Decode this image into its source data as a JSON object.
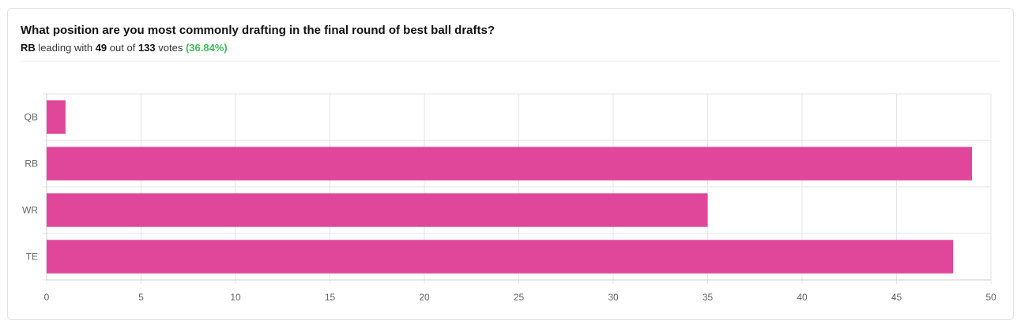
{
  "poll": {
    "question": "What position are you most commonly drafting in the final round of best ball drafts?",
    "leader": "RB",
    "leading_with": "leading with",
    "leader_votes": "49",
    "out_of": "out of",
    "total_votes": "133",
    "votes_word": "votes",
    "leader_pct": "(36.84%)"
  },
  "colors": {
    "bar": "#e0479a",
    "grid": "#e6e6ea",
    "axis": "#cfcfd4",
    "percent": "#3dbb5a"
  },
  "chart_data": {
    "type": "bar",
    "orientation": "horizontal",
    "categories": [
      "QB",
      "RB",
      "WR",
      "TE"
    ],
    "values": [
      1,
      49,
      35,
      48
    ],
    "xlim": [
      0,
      50
    ],
    "xticks": [
      0,
      5,
      10,
      15,
      20,
      25,
      30,
      35,
      40,
      45,
      50
    ],
    "title": "",
    "xlabel": "",
    "ylabel": "",
    "grid": true,
    "legend": "none"
  }
}
